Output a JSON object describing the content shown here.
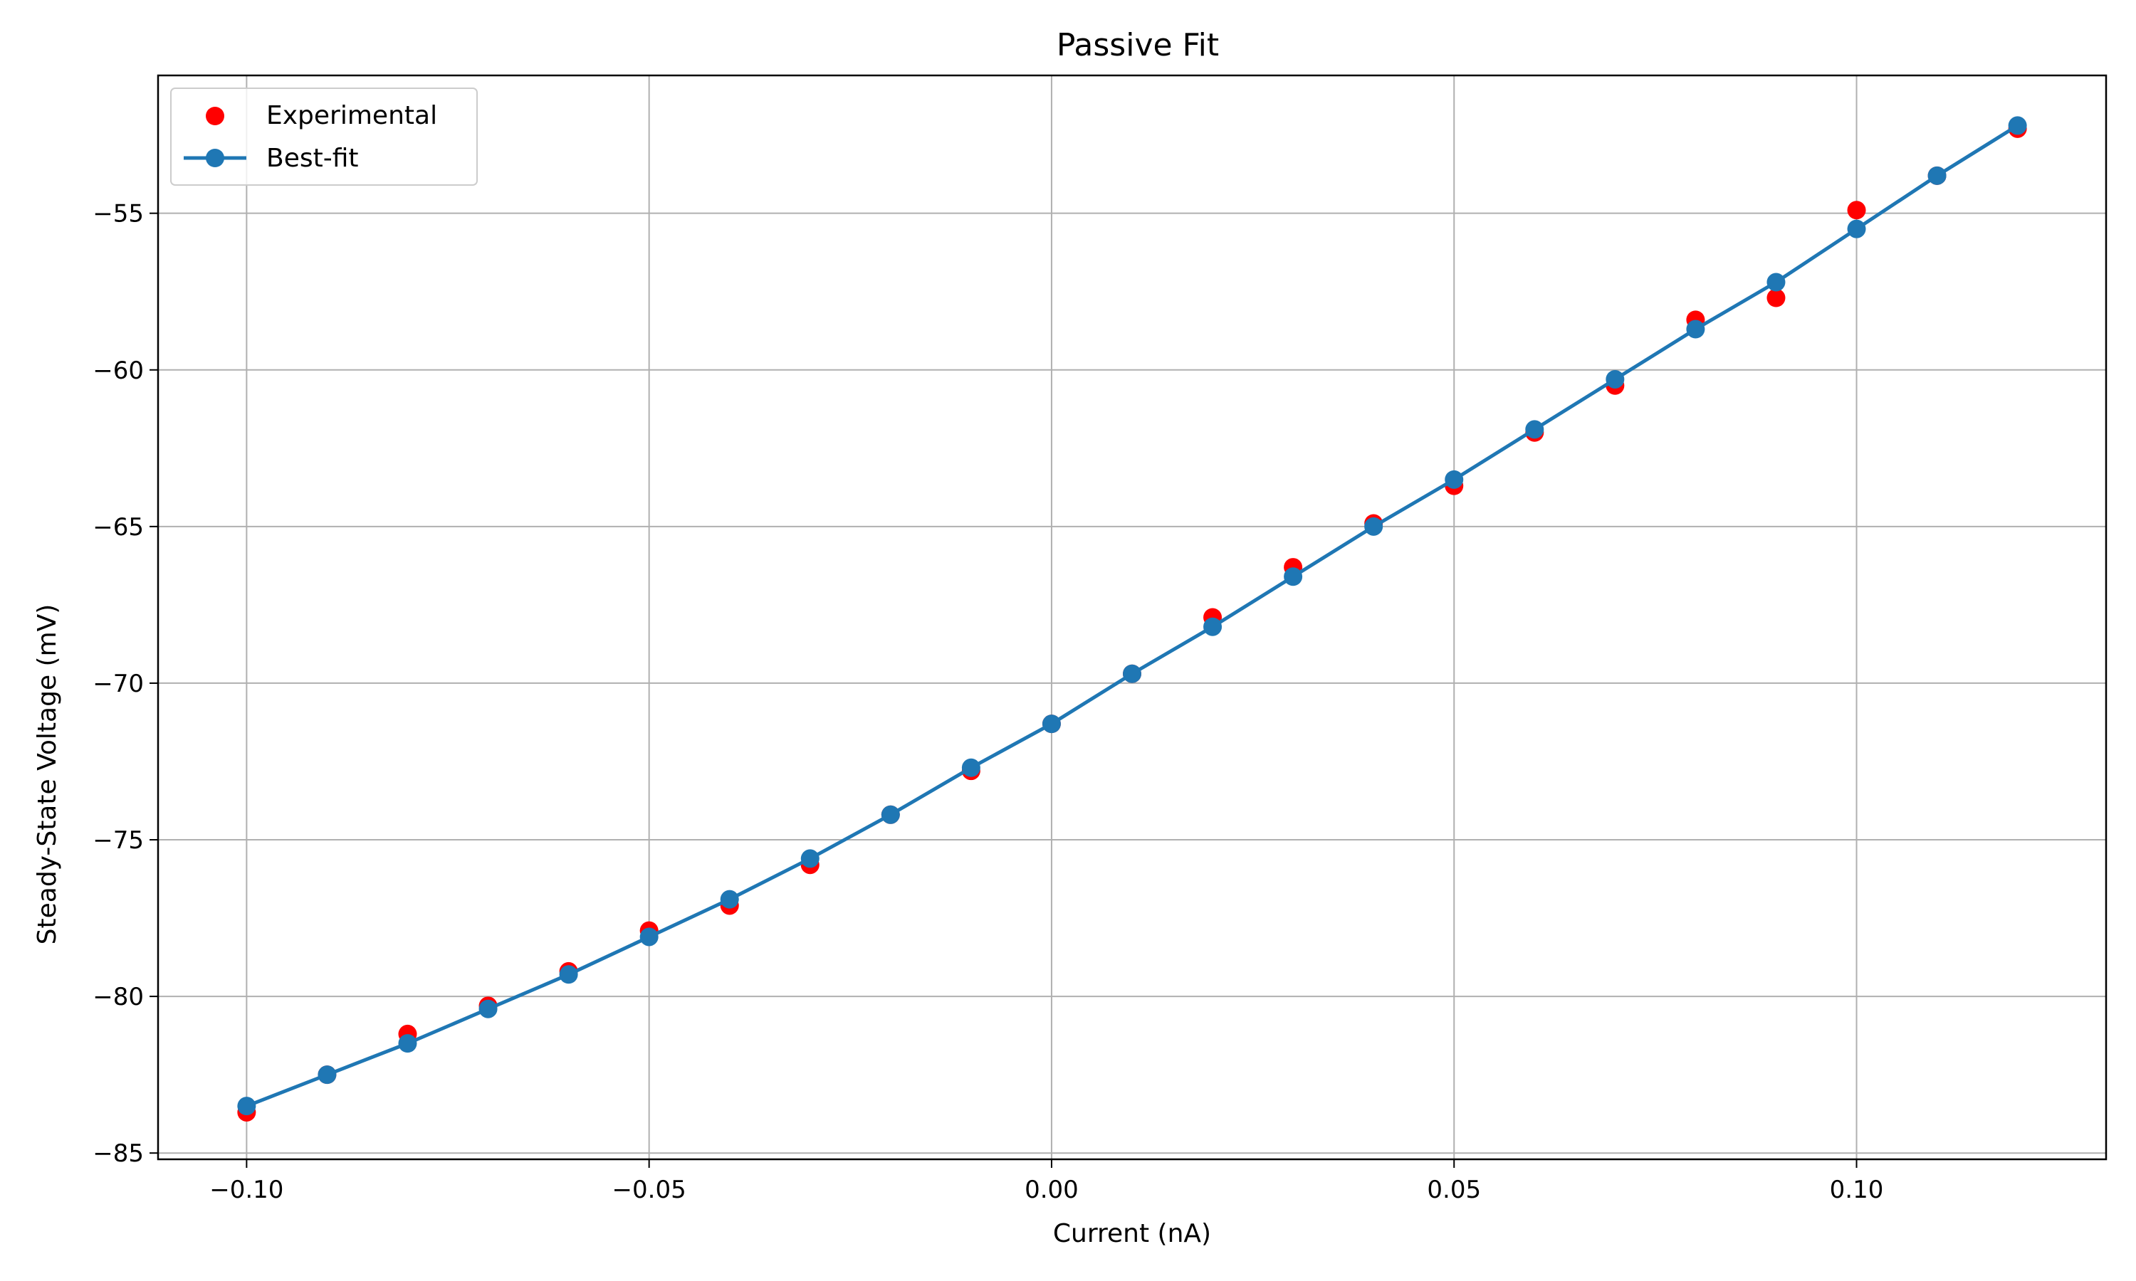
{
  "chart_data": {
    "type": "scatter",
    "title": "Passive Fit",
    "xlabel": "Current (nA)",
    "ylabel": "Steady-State Voltage (mV)",
    "xlim": [
      -0.111,
      0.131
    ],
    "ylim": [
      -85.2,
      -50.6
    ],
    "xticks": [
      -0.1,
      -0.05,
      0.0,
      0.05,
      0.1
    ],
    "xtick_labels": [
      "−0.10",
      "−0.05",
      "0.00",
      "0.05",
      "0.10"
    ],
    "yticks": [
      -85,
      -80,
      -75,
      -70,
      -65,
      -60,
      -55
    ],
    "ytick_labels": [
      "−85",
      "−80",
      "−75",
      "−70",
      "−65",
      "−60",
      "−55"
    ],
    "grid": true,
    "legend_position": "top-left",
    "series": [
      {
        "name": "Experimental",
        "kind": "scatter",
        "color": "#ff0000",
        "x": [
          -0.1,
          -0.09,
          -0.08,
          -0.07,
          -0.06,
          -0.05,
          -0.04,
          -0.03,
          -0.02,
          -0.01,
          0.0,
          0.01,
          0.02,
          0.03,
          0.04,
          0.05,
          0.06,
          0.07,
          0.08,
          0.09,
          0.1,
          0.11,
          0.12
        ],
        "y": [
          -83.7,
          -82.5,
          -81.2,
          -80.3,
          -79.2,
          -77.9,
          -77.1,
          -75.8,
          -74.2,
          -72.8,
          -71.3,
          -69.7,
          -67.9,
          -66.3,
          -64.9,
          -63.7,
          -62.0,
          -60.5,
          -58.4,
          -57.7,
          -54.9,
          -53.8,
          -52.3
        ]
      },
      {
        "name": "Best-fit",
        "kind": "line-marker",
        "color": "#1f77b4",
        "x": [
          -0.1,
          -0.09,
          -0.08,
          -0.07,
          -0.06,
          -0.05,
          -0.04,
          -0.03,
          -0.02,
          -0.01,
          0.0,
          0.01,
          0.02,
          0.03,
          0.04,
          0.05,
          0.06,
          0.07,
          0.08,
          0.09,
          0.1,
          0.11,
          0.12
        ],
        "y": [
          -83.5,
          -82.5,
          -81.5,
          -80.4,
          -79.3,
          -78.1,
          -76.9,
          -75.6,
          -74.2,
          -72.7,
          -71.3,
          -69.7,
          -68.2,
          -66.6,
          -65.0,
          -63.5,
          -61.9,
          -60.3,
          -58.7,
          -57.2,
          -55.5,
          -53.8,
          -52.2
        ]
      }
    ]
  }
}
